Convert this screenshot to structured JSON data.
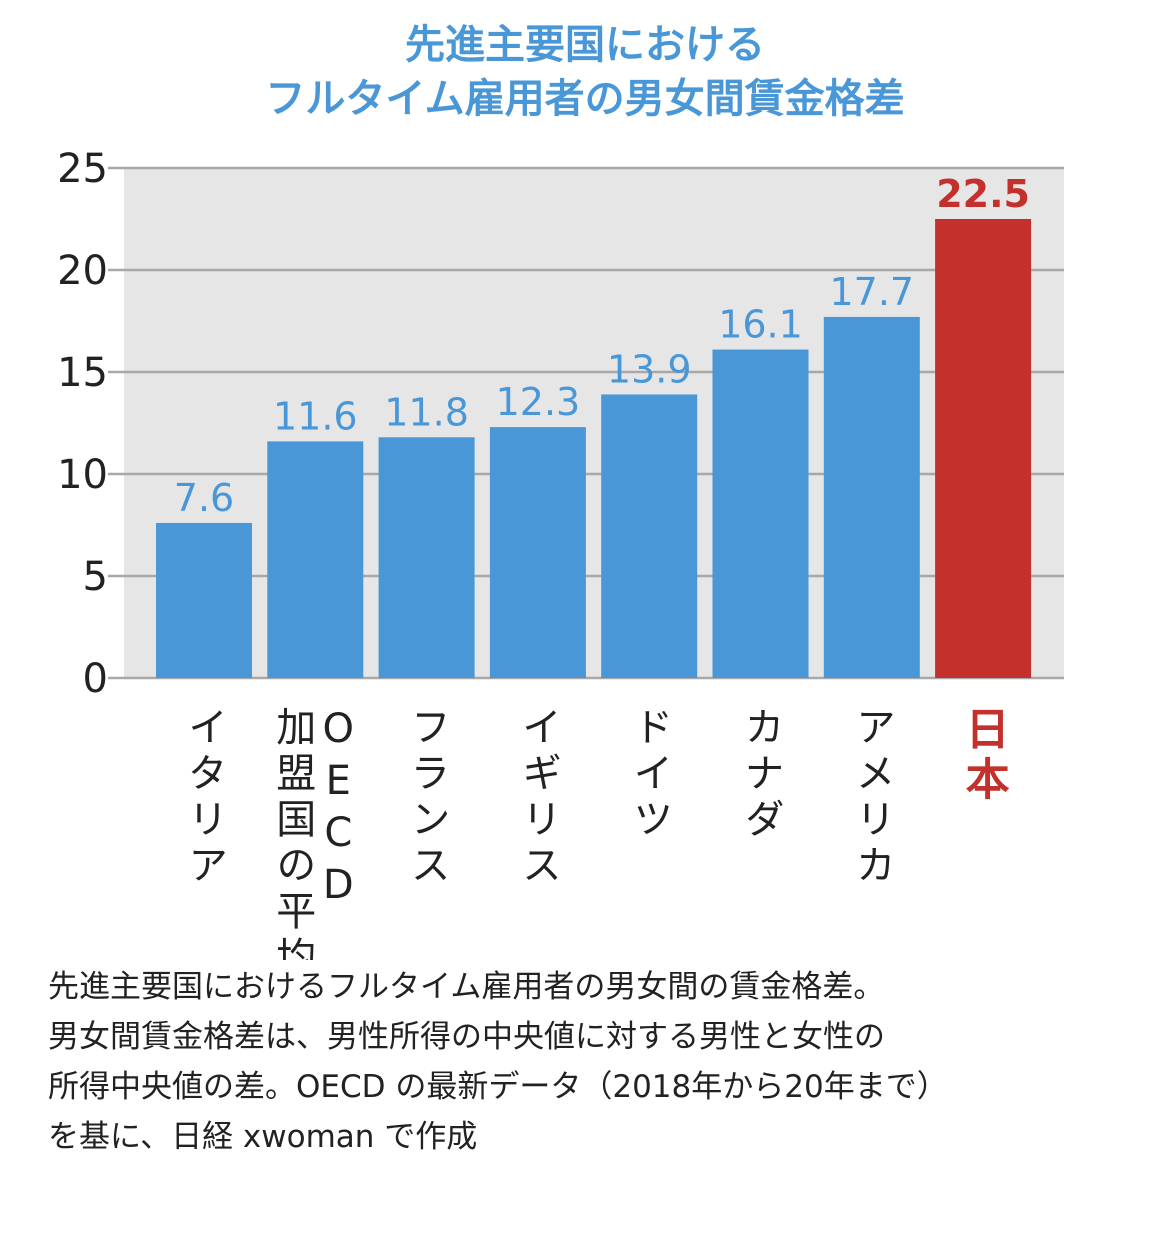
{
  "chart_data": {
    "type": "bar",
    "title": [
      "先進主要国における",
      "フルタイム雇用者の男女間賃金格差"
    ],
    "categories": [
      "イタリア",
      "OECD加盟国の平均",
      "フランス",
      "イギリス",
      "ドイツ",
      "カナダ",
      "アメリカ",
      "日本"
    ],
    "category_columns": [
      [
        "イタリア"
      ],
      [
        "OECD",
        "加盟国の平均"
      ],
      [
        "フランス"
      ],
      [
        "イギリス"
      ],
      [
        "ドイツ"
      ],
      [
        "カナダ"
      ],
      [
        "アメリカ"
      ],
      [
        "日本"
      ]
    ],
    "values": [
      7.6,
      11.6,
      11.8,
      12.3,
      13.9,
      16.1,
      17.7,
      22.5
    ],
    "value_labels": [
      "7.6",
      "11.6",
      "11.8",
      "12.3",
      "13.9",
      "16.1",
      "17.7",
      "22.5"
    ],
    "highlight_index": 7,
    "ylim": [
      0,
      25
    ],
    "yticks": [
      "0",
      "5",
      "10",
      "15",
      "20",
      "25"
    ],
    "grid": true,
    "colors": {
      "bar": "#4a97d8",
      "highlight": "#c4302b",
      "plot_bg": "#e6e6e6",
      "grid": "#a8a8a8",
      "title": "#4a97d8"
    }
  },
  "caption": [
    "先進主要国におけるフルタイム雇用者の男女間の賃金格差。",
    "男女間賃金格差は、男性所得の中央値に対する男性と女性の",
    "所得中央値の差。OECD の最新データ（2018年から20年まで）",
    "を基に、日経 xwoman で作成"
  ]
}
